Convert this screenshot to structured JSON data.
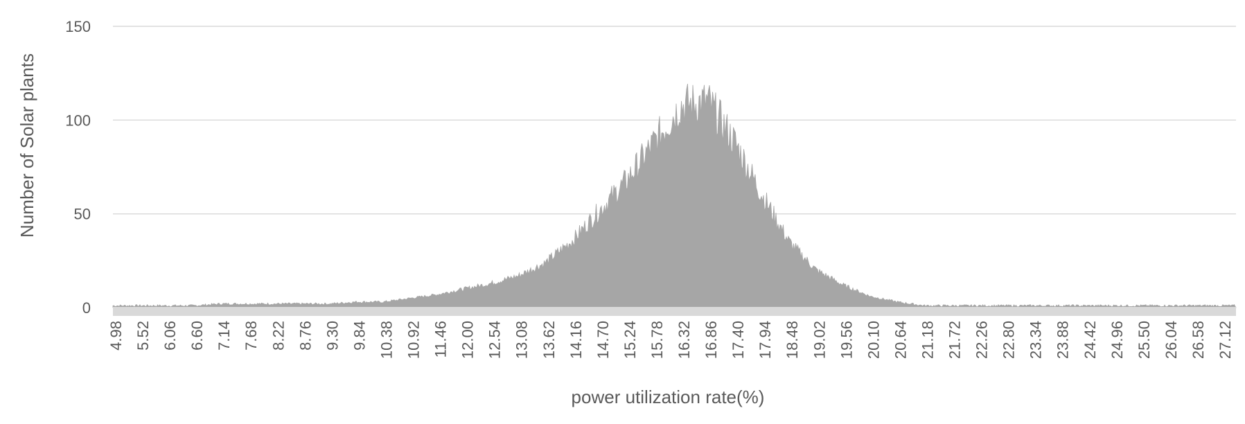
{
  "chart_data": {
    "type": "area",
    "title": "",
    "xlabel": "power utilization rate(%)",
    "ylabel": "Number of Solar plants",
    "ylim": [
      0,
      150
    ],
    "yticks": [
      "0",
      "50",
      "100",
      "150"
    ],
    "xtick_labels": [
      "4.98",
      "5.52",
      "6.06",
      "6.60",
      "7.14",
      "7.68",
      "8.22",
      "8.76",
      "9.30",
      "9.84",
      "10.38",
      "10.92",
      "11.46",
      "12.00",
      "12.54",
      "13.08",
      "13.62",
      "14.16",
      "14.70",
      "15.24",
      "15.78",
      "16.32",
      "16.86",
      "17.40",
      "17.94",
      "18.48",
      "19.02",
      "19.56",
      "20.10",
      "20.64",
      "21.18",
      "21.72",
      "22.26",
      "22.80",
      "23.34",
      "23.88",
      "24.42",
      "24.96",
      "25.50",
      "26.04",
      "26.58",
      "27.12"
    ],
    "x_range": [
      4.98,
      27.4
    ],
    "grid": true,
    "legend": "none",
    "fill_color": "#a6a6a6",
    "baseline_color": "#d9d9d9",
    "series": [
      {
        "x": [
          4.98,
          5.52,
          6.06,
          6.6,
          7.14,
          7.68,
          8.22,
          8.76,
          9.3,
          9.84,
          10.38,
          10.92,
          11.46,
          12.0,
          12.54,
          13.08,
          13.62,
          14.16,
          14.7,
          15.24,
          15.78,
          16.32,
          16.86,
          17.4,
          17.94,
          18.48,
          19.02,
          19.56,
          20.1,
          20.64,
          21.18,
          21.72,
          22.26,
          22.8,
          23.34,
          23.88,
          24.42,
          24.96,
          25.5,
          26.04,
          26.58,
          27.12
        ],
        "values": [
          1,
          1,
          1,
          1,
          2,
          2,
          2,
          2,
          2,
          3,
          3,
          5,
          7,
          10,
          13,
          17,
          24,
          36,
          52,
          68,
          88,
          108,
          110,
          88,
          60,
          35,
          20,
          12,
          6,
          3,
          1,
          1,
          1,
          1,
          1,
          1,
          1,
          1,
          1,
          1,
          1,
          1
        ]
      }
    ]
  }
}
